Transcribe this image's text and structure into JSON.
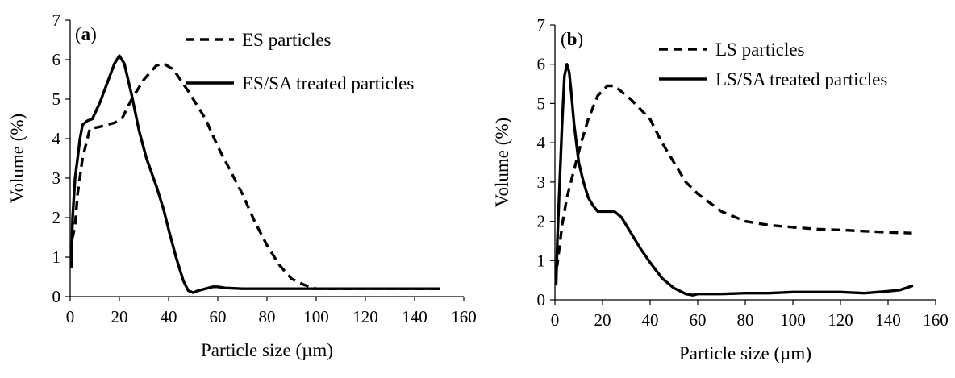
{
  "chart_data": [
    {
      "type": "line",
      "panel": "a",
      "panel_label": "(a)",
      "xlabel": "Particle size (µm)",
      "ylabel": "Volume (%)",
      "xlim": [
        0,
        160
      ],
      "ylim": [
        0,
        7
      ],
      "xticks": [
        "0",
        "20",
        "40",
        "60",
        "80",
        "100",
        "120",
        "140",
        "160"
      ],
      "yticks": [
        "0",
        "1",
        "2",
        "3",
        "4",
        "5",
        "6",
        "7"
      ],
      "grid": false,
      "legend_position": "top-right",
      "series": [
        {
          "name": "ES particles",
          "style": "dashed",
          "color": "#000000",
          "x": [
            0.5,
            1,
            2,
            3,
            5,
            8,
            12,
            18,
            21,
            25,
            30,
            35,
            38,
            42,
            48,
            55,
            60,
            65,
            70,
            75,
            80,
            85,
            90,
            95,
            100,
            110,
            120,
            130,
            140,
            150
          ],
          "y": [
            1.5,
            1.5,
            1.8,
            2.6,
            3.5,
            4.25,
            4.3,
            4.4,
            4.5,
            5.0,
            5.5,
            5.85,
            5.9,
            5.75,
            5.2,
            4.5,
            3.8,
            3.2,
            2.6,
            1.9,
            1.3,
            0.8,
            0.45,
            0.3,
            0.2,
            0.2,
            0.2,
            0.2,
            0.2,
            0.2
          ]
        },
        {
          "name": "ES/SA treated particles",
          "style": "solid",
          "color": "#000000",
          "x": [
            0.5,
            1,
            2,
            3,
            4,
            5,
            7,
            9,
            12,
            15,
            18,
            20,
            22,
            25,
            28,
            31,
            35,
            38,
            40,
            43,
            46,
            48,
            50,
            52,
            55,
            58,
            60,
            63,
            70,
            80,
            100,
            120,
            150
          ],
          "y": [
            0.75,
            2.0,
            3.0,
            3.5,
            4.0,
            4.35,
            4.45,
            4.5,
            4.9,
            5.4,
            5.9,
            6.1,
            5.9,
            5.1,
            4.2,
            3.5,
            2.8,
            2.2,
            1.7,
            1.0,
            0.4,
            0.15,
            0.1,
            0.15,
            0.2,
            0.25,
            0.25,
            0.22,
            0.2,
            0.2,
            0.2,
            0.2,
            0.2
          ]
        }
      ]
    },
    {
      "type": "line",
      "panel": "b",
      "panel_label": "(b)",
      "xlabel": "Particle size (µm)",
      "ylabel": "Volume (%)",
      "xlim": [
        0,
        160
      ],
      "ylim": [
        0,
        7
      ],
      "xticks": [
        "0",
        "20",
        "40",
        "60",
        "80",
        "100",
        "120",
        "140",
        "160"
      ],
      "yticks": [
        "0",
        "1",
        "2",
        "3",
        "4",
        "5",
        "6",
        "7"
      ],
      "grid": false,
      "legend_position": "top-right",
      "series": [
        {
          "name": "LS particles",
          "style": "dashed",
          "color": "#000000",
          "x": [
            0.5,
            1,
            2,
            3,
            5,
            8,
            11,
            14,
            18,
            22,
            25,
            28,
            32,
            36,
            40,
            45,
            50,
            55,
            60,
            70,
            80,
            90,
            100,
            110,
            120,
            130,
            140,
            150
          ],
          "y": [
            0.8,
            0.9,
            1.4,
            1.9,
            2.6,
            3.3,
            4.0,
            4.6,
            5.2,
            5.45,
            5.45,
            5.3,
            5.1,
            4.85,
            4.6,
            4.0,
            3.5,
            3.0,
            2.7,
            2.25,
            2.0,
            1.9,
            1.85,
            1.8,
            1.78,
            1.75,
            1.72,
            1.7
          ]
        },
        {
          "name": "LS/SA treated particles",
          "style": "solid",
          "color": "#000000",
          "x": [
            0.5,
            1,
            2,
            3,
            4,
            5,
            6,
            7,
            8,
            10,
            12,
            14,
            16,
            18,
            20,
            22,
            25,
            28,
            32,
            36,
            40,
            45,
            50,
            55,
            58,
            60,
            70,
            80,
            90,
            100,
            110,
            120,
            130,
            140,
            145,
            150
          ],
          "y": [
            0.4,
            1.5,
            3.0,
            4.5,
            5.7,
            6.0,
            5.8,
            5.2,
            4.5,
            3.5,
            3.0,
            2.6,
            2.4,
            2.25,
            2.25,
            2.25,
            2.25,
            2.1,
            1.7,
            1.3,
            0.95,
            0.55,
            0.3,
            0.15,
            0.12,
            0.15,
            0.15,
            0.17,
            0.17,
            0.2,
            0.2,
            0.2,
            0.17,
            0.22,
            0.25,
            0.35
          ]
        }
      ]
    }
  ]
}
